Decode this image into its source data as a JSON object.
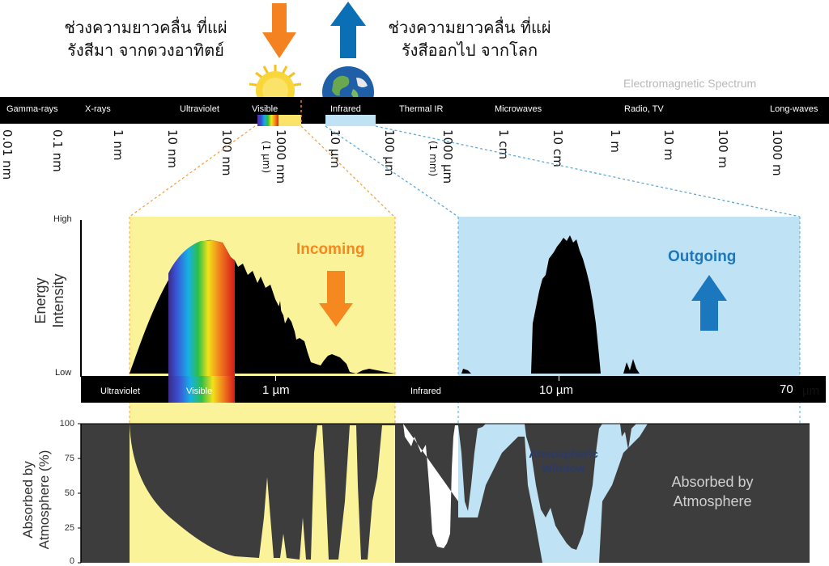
{
  "top": {
    "incoming_text_line1": "ช่วงความยาวคลื่น ที่แผ่",
    "incoming_text_line2": "รังสีมา จากดวงอาทิตย์",
    "outgoing_text_line1": "ช่วงความยาวคลื่น ที่แผ่",
    "outgoing_text_line2": "รังสีออกไป จากโลก",
    "incoming_arrow_color": "#f58220",
    "outgoing_arrow_color": "#0b6fb5"
  },
  "spectrum": {
    "title": "Electromagnetic Spectrum",
    "bands": [
      "Gamma-rays",
      "X-rays",
      "Ultraviolet",
      "Visible",
      "Infrared",
      "Thermal IR",
      "Microwaves",
      "Radio, TV",
      "Long-waves"
    ],
    "ticks": [
      "0.01 nm",
      "0.1 nm",
      "1 nm",
      "10 nm",
      "100 nm",
      "1000 nm",
      "(1 µm)",
      "10 µm",
      "100 µm",
      "1000 µm",
      "(1 mm)",
      "1 cm",
      "10 cm",
      "1 m",
      "10 m",
      "100 m",
      "1000 m"
    ]
  },
  "energy_panel": {
    "y_high": "High",
    "y_low": "Low",
    "y_label_line1": "Energy",
    "y_label_line2": "Intensity",
    "incoming_label": "Incoming",
    "outgoing_label": "Outgoing",
    "incoming_color": "#f5891f",
    "outgoing_color": "#1c78be",
    "yellow_bg": "#fbf39a",
    "blue_bg": "#bfe3f4"
  },
  "mid_bar": {
    "ultraviolet": "Ultraviolet",
    "visible": "Visible",
    "tick_1um": "1 µm",
    "infrared": "Infrared",
    "tick_10um": "10 µm",
    "tick_70um": "70",
    "tick_70um_unit": "µm"
  },
  "absorption_panel": {
    "y_label_line1": "Absorbed by",
    "y_label_line2": "Atmosphere (%)",
    "y_ticks": [
      "100",
      "75",
      "50",
      "25",
      "0"
    ],
    "window_line1": "Atmospheric",
    "window_line2": "Window",
    "absorbed_line1": "Absorbed by",
    "absorbed_line2": "Atmosphere",
    "bg_color": "#3d3d3d"
  }
}
